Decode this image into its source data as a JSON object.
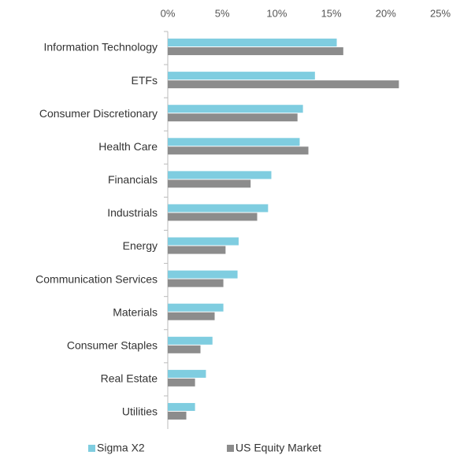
{
  "chart_data": {
    "type": "bar",
    "orientation": "horizontal",
    "categories": [
      "Information Technology",
      "ETFs",
      "Consumer Discretionary",
      "Health Care",
      "Financials",
      "Industrials",
      "Energy",
      "Communication Services",
      "Materials",
      "Consumer Staples",
      "Real Estate",
      "Utilities"
    ],
    "series": [
      {
        "name": "Sigma X2",
        "color": "#7fcde0",
        "values": [
          15.5,
          13.5,
          12.4,
          12.1,
          9.5,
          9.2,
          6.5,
          6.4,
          5.1,
          4.1,
          3.5,
          2.5
        ]
      },
      {
        "name": "US Equity Market",
        "color": "#8c8c8c",
        "values": [
          16.1,
          21.2,
          11.9,
          12.9,
          7.6,
          8.2,
          5.3,
          5.1,
          4.3,
          3.0,
          2.5,
          1.7
        ]
      }
    ],
    "xlim": [
      0,
      25
    ],
    "xticks": [
      {
        "value": 0,
        "label": "0%"
      },
      {
        "value": 5,
        "label": "5%"
      },
      {
        "value": 10,
        "label": "10%"
      },
      {
        "value": 15,
        "label": "15%"
      },
      {
        "value": 20,
        "label": "20%"
      },
      {
        "value": 25,
        "label": "25%"
      }
    ],
    "grid": false,
    "legend": "bottom"
  }
}
